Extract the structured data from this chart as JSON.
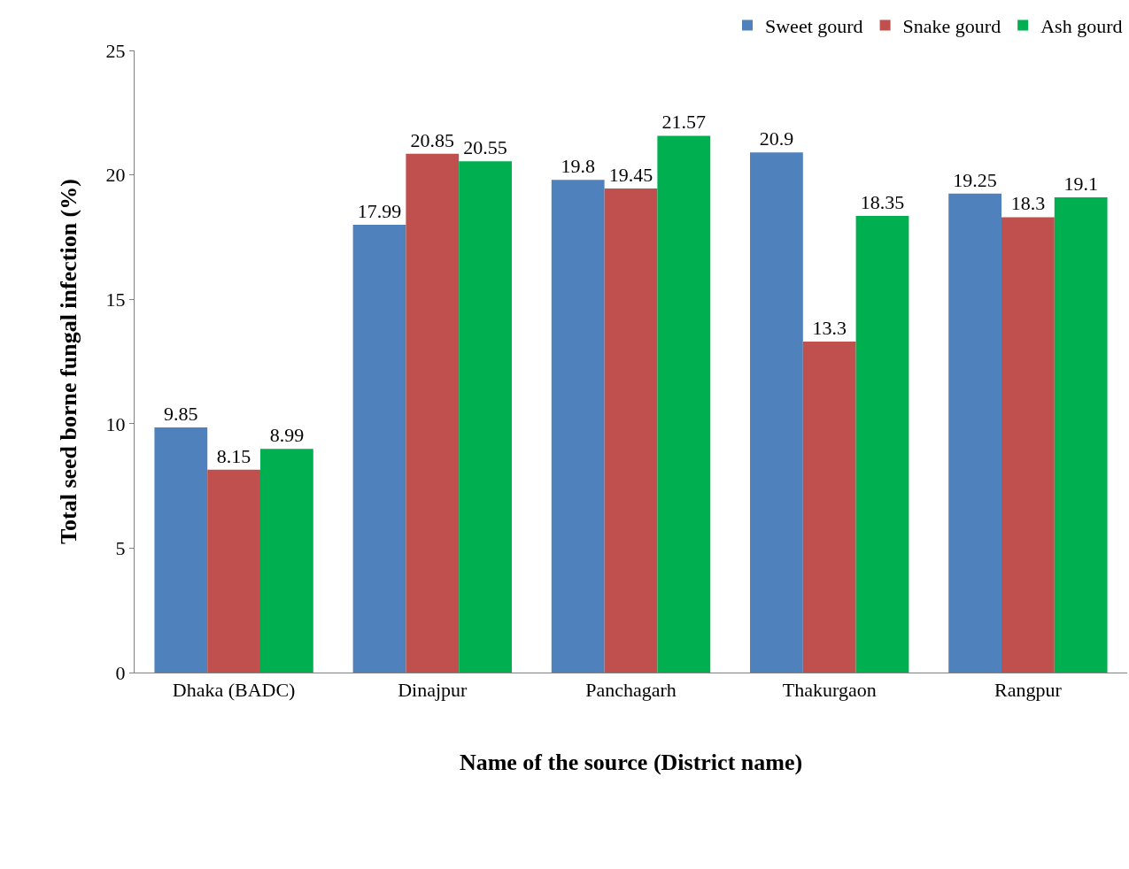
{
  "chart_data": {
    "type": "bar",
    "xlabel": "Name of the source (District name)",
    "ylabel": "Total seed borne fungal infection (%)",
    "categories": [
      "Dhaka (BADC)",
      "Dinajpur",
      "Panchagarh",
      "Thakurgaon",
      "Rangpur"
    ],
    "series": [
      {
        "name": "Sweet gourd",
        "color": "#4f81bd",
        "values": [
          9.85,
          17.99,
          19.8,
          20.9,
          19.25
        ]
      },
      {
        "name": "Snake gourd",
        "color": "#c0504d",
        "values": [
          8.15,
          20.85,
          19.45,
          13.3,
          18.3
        ]
      },
      {
        "name": "Ash gourd",
        "color": "#00b050",
        "values": [
          8.99,
          20.55,
          21.57,
          18.35,
          19.1
        ]
      }
    ],
    "ylim": [
      0,
      25
    ],
    "yticks": [
      0,
      5,
      10,
      15,
      20,
      25
    ],
    "grid": false,
    "legend": "top right",
    "data_labels": true
  }
}
